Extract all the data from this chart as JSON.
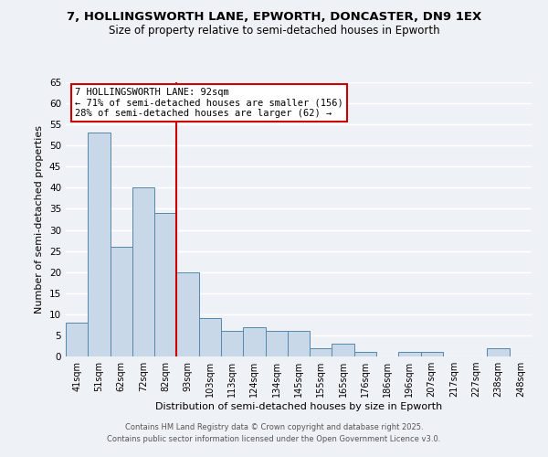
{
  "title_line1": "7, HOLLINGSWORTH LANE, EPWORTH, DONCASTER, DN9 1EX",
  "title_line2": "Size of property relative to semi-detached houses in Epworth",
  "xlabel": "Distribution of semi-detached houses by size in Epworth",
  "ylabel": "Number of semi-detached properties",
  "bar_labels": [
    "41sqm",
    "51sqm",
    "62sqm",
    "72sqm",
    "82sqm",
    "93sqm",
    "103sqm",
    "113sqm",
    "124sqm",
    "134sqm",
    "145sqm",
    "155sqm",
    "165sqm",
    "176sqm",
    "186sqm",
    "196sqm",
    "207sqm",
    "217sqm",
    "227sqm",
    "238sqm",
    "248sqm"
  ],
  "bar_values": [
    8,
    53,
    26,
    40,
    34,
    20,
    9,
    6,
    7,
    6,
    6,
    2,
    3,
    1,
    0,
    1,
    1,
    0,
    0,
    2,
    0
  ],
  "bar_color": "#c8d8e8",
  "bar_edge_color": "#5588aa",
  "ylim": [
    0,
    65
  ],
  "yticks": [
    0,
    5,
    10,
    15,
    20,
    25,
    30,
    35,
    40,
    45,
    50,
    55,
    60,
    65
  ],
  "vline_color": "#cc0000",
  "annotation_title": "7 HOLLINGSWORTH LANE: 92sqm",
  "annotation_line1": "← 71% of semi-detached houses are smaller (156)",
  "annotation_line2": "28% of semi-detached houses are larger (62) →",
  "annotation_box_color": "#ffffff",
  "annotation_box_edge": "#cc0000",
  "footer_line1": "Contains HM Land Registry data © Crown copyright and database right 2025.",
  "footer_line2": "Contains public sector information licensed under the Open Government Licence v3.0.",
  "bg_color": "#eef2f7",
  "plot_bg_color": "#eef2f7",
  "grid_color": "#ffffff"
}
